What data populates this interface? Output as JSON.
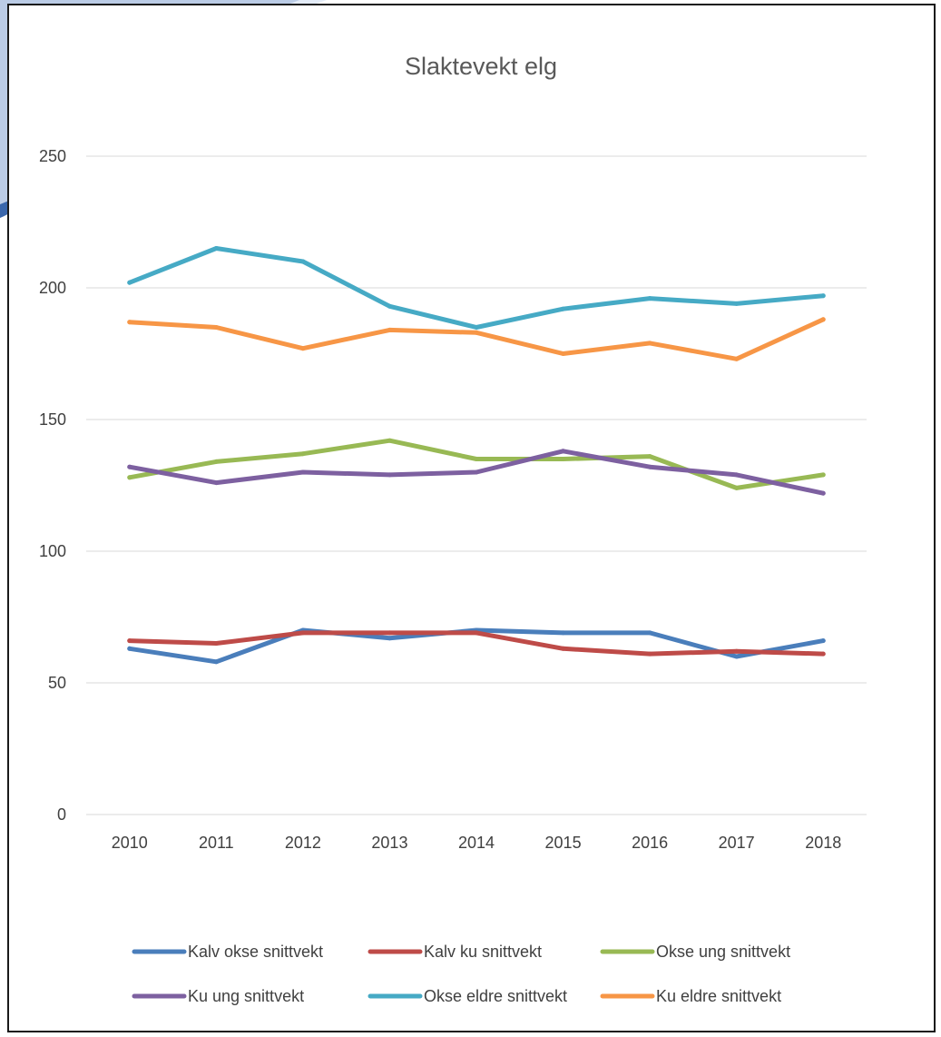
{
  "colors": {
    "frame_border": "#1a1a1a",
    "background_accent": "#2f5fa8",
    "gridlines": "#d9d9d9",
    "text": "#404040"
  },
  "chart_data": {
    "type": "line",
    "title": "Slaktevekt elg",
    "xlabel": "",
    "ylabel": "",
    "categories": [
      "2010",
      "2011",
      "2012",
      "2013",
      "2014",
      "2015",
      "2016",
      "2017",
      "2018"
    ],
    "ylim": [
      0,
      250
    ],
    "yticks": [
      0,
      50,
      100,
      150,
      200,
      250
    ],
    "grid": true,
    "legend_position": "bottom",
    "series": [
      {
        "name": "Kalv okse snittvekt",
        "color": "#4a7ebb",
        "values": [
          63,
          58,
          70,
          67,
          70,
          69,
          69,
          60,
          66
        ]
      },
      {
        "name": "Kalv ku snittvekt",
        "color": "#be4b48",
        "values": [
          66,
          65,
          69,
          69,
          69,
          63,
          61,
          62,
          61
        ]
      },
      {
        "name": "Okse ung snittvekt",
        "color": "#98b954",
        "values": [
          128,
          134,
          137,
          142,
          135,
          135,
          136,
          124,
          129
        ]
      },
      {
        "name": "Ku ung snittvekt",
        "color": "#7d60a0",
        "values": [
          132,
          126,
          130,
          129,
          130,
          138,
          132,
          129,
          122
        ]
      },
      {
        "name": "Okse eldre snittvekt",
        "color": "#46aac5",
        "values": [
          202,
          215,
          210,
          193,
          185,
          192,
          196,
          194,
          197
        ]
      },
      {
        "name": "Ku eldre snittvekt",
        "color": "#f79646",
        "values": [
          187,
          185,
          177,
          184,
          183,
          175,
          179,
          173,
          188
        ]
      }
    ]
  }
}
